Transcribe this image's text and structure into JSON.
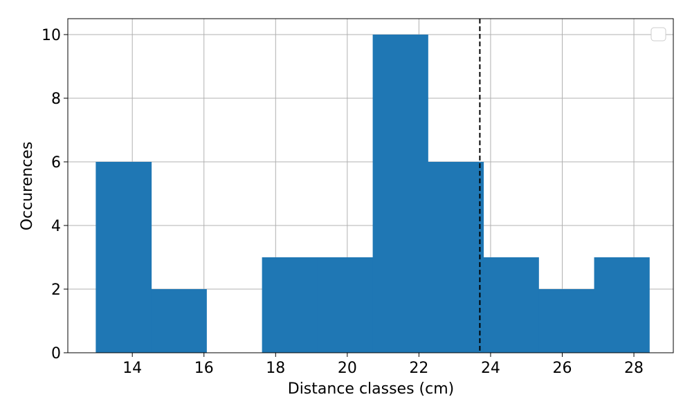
{
  "chart_data": {
    "type": "bar",
    "subtype": "histogram",
    "title": "",
    "xlabel": "Distance classes (cm)",
    "ylabel": "Occurences",
    "xlim": [
      12.2,
      29.1
    ],
    "ylim": [
      0,
      10.5
    ],
    "x_ticks": [
      14,
      16,
      18,
      20,
      22,
      24,
      26,
      28
    ],
    "y_ticks": [
      0,
      2,
      4,
      6,
      8,
      10
    ],
    "grid": true,
    "legend": {
      "position": "top-right",
      "entries": []
    },
    "bins": [
      {
        "start": 12.98,
        "end": 14.53,
        "count": 6
      },
      {
        "start": 14.53,
        "end": 16.07,
        "count": 2
      },
      {
        "start": 16.07,
        "end": 17.62,
        "count": 0
      },
      {
        "start": 17.62,
        "end": 19.16,
        "count": 3
      },
      {
        "start": 19.16,
        "end": 20.71,
        "count": 3
      },
      {
        "start": 20.71,
        "end": 22.25,
        "count": 10
      },
      {
        "start": 22.25,
        "end": 23.8,
        "count": 6
      },
      {
        "start": 23.8,
        "end": 25.34,
        "count": 3
      },
      {
        "start": 25.34,
        "end": 26.89,
        "count": 2
      },
      {
        "start": 26.89,
        "end": 28.43,
        "count": 3
      }
    ],
    "bar_color": "#1f77b4",
    "reference_line": {
      "x": 23.7,
      "style": "dashed",
      "color": "#000000"
    }
  }
}
